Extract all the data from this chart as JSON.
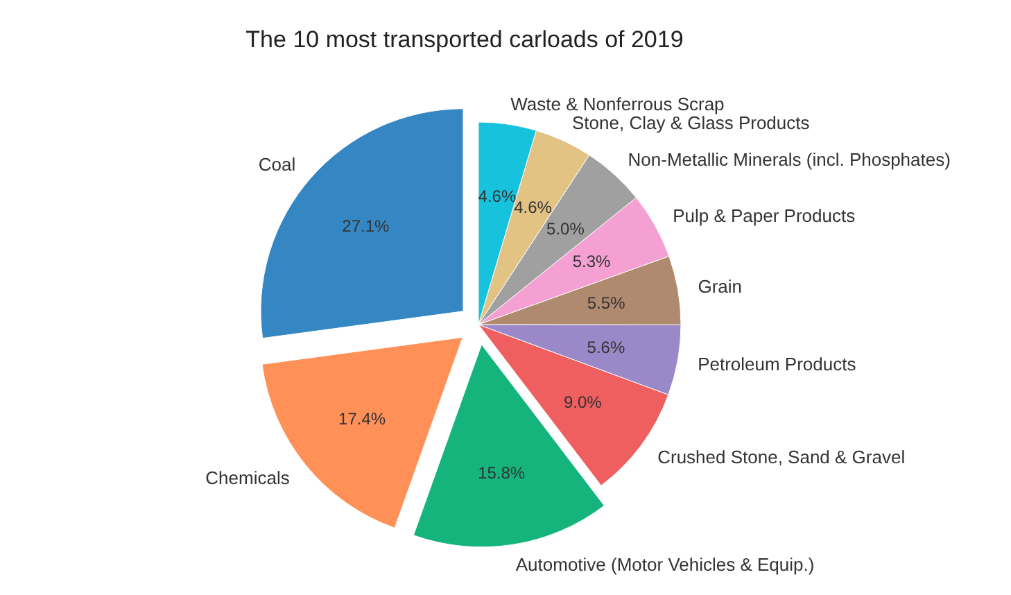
{
  "chart_data": {
    "type": "pie",
    "title": "The 10 most transported carloads of 2019",
    "categories": [
      "Coal",
      "Chemicals",
      "Automotive (Motor Vehicles & Equip.)",
      "Crushed Stone, Sand & Gravel",
      "Petroleum Products",
      "Grain",
      "Pulp & Paper Products",
      "Non-Metallic Minerals (incl. Phosphates)",
      "Stone, Clay & Glass Products",
      "Waste & Nonferrous Scrap"
    ],
    "values": [
      27.1,
      17.4,
      15.8,
      9.0,
      5.6,
      5.5,
      5.3,
      5.0,
      4.6,
      4.6
    ],
    "value_labels": [
      "27.1%",
      "17.4%",
      "15.8%",
      "9.0%",
      "5.6%",
      "5.5%",
      "5.3%",
      "5.0%",
      "4.6%",
      "4.6%"
    ],
    "colors": [
      "#3587c3",
      "#ff9058",
      "#14b47c",
      "#f05f5f",
      "#9a88c8",
      "#b08a6e",
      "#f5a0d2",
      "#a0a0a0",
      "#e2c384",
      "#17c3dc"
    ]
  }
}
